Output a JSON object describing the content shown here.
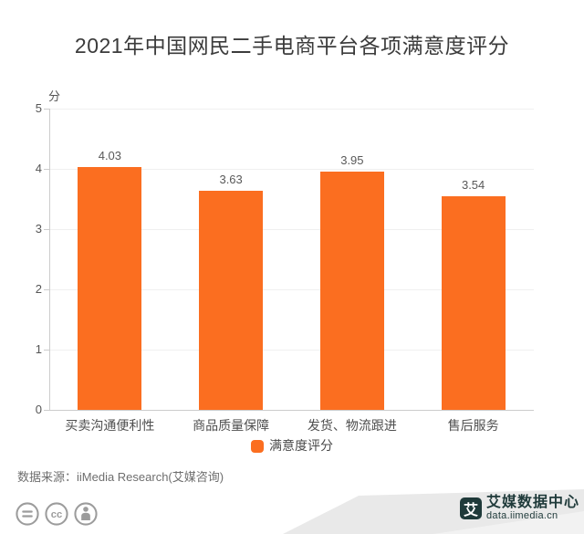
{
  "title": "2021年中国网民二手电商平台各项满意度评分",
  "chart_data": {
    "type": "bar",
    "title": "2021年中国网民二手电商平台各项满意度评分",
    "unit_label": "分",
    "categories": [
      "买卖沟通便利性",
      "商品质量保障",
      "发货、物流跟进",
      "售后服务"
    ],
    "values": [
      4.03,
      3.63,
      3.95,
      3.54
    ],
    "value_labels": [
      "4.03",
      "3.63",
      "3.95",
      "3.54"
    ],
    "ylim": [
      0,
      5
    ],
    "yticks": [
      0,
      1,
      2,
      3,
      4,
      5
    ],
    "grid": true,
    "legend": {
      "label": "满意度评分",
      "position": "bottom"
    },
    "bar_color": "#fb6e20"
  },
  "footer": {
    "source": "数据来源：iiMedia Research(艾媒咨询)",
    "license_icons": [
      "equals-icon",
      "cc-icon",
      "person-icon"
    ],
    "brand": {
      "logo_char": "艾",
      "name": "艾媒数据中心",
      "url": "data.iimedia.cn"
    }
  },
  "colors": {
    "bar": "#fb6e20",
    "brand_dark": "#1f3a3a",
    "icon_gray": "#9c9c9c",
    "swoosh_light": "#f2f2f2",
    "swoosh_mid": "#e9e9e9",
    "title_text": "#3b3b3b"
  }
}
